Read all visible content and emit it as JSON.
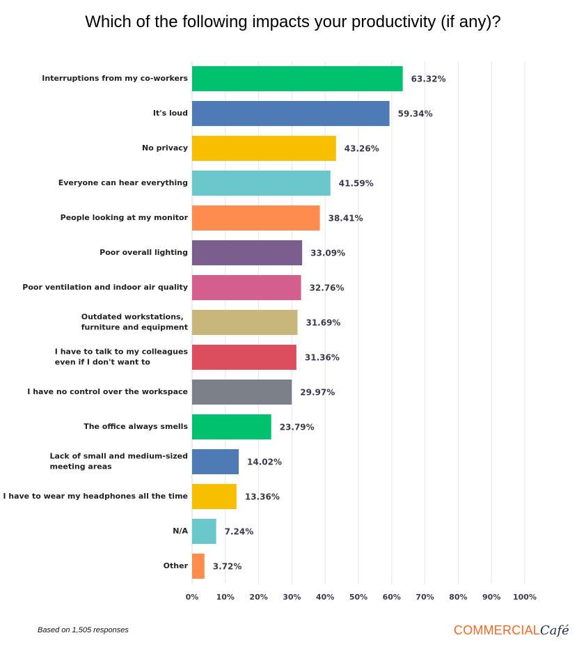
{
  "chart_data": {
    "type": "bar",
    "orientation": "horizontal",
    "title": "Which of the following impacts your productivity (if any)?",
    "categories": [
      "Interruptions from my co-workers",
      "It's loud",
      "No privacy",
      "Everyone can hear everything",
      "People looking at my monitor",
      "Poor overall lighting",
      "Poor ventilation and indoor air quality",
      "Outdated workstations, furniture and equipment",
      "I have to talk to my colleagues even if I don't want to",
      "I have no control over the workspace",
      "The office always smells",
      "Lack of small and medium-sized meeting areas",
      "I have to wear my headphones all the time",
      "N/A",
      "Other"
    ],
    "label_lines": [
      [
        "Interruptions from my co-workers"
      ],
      [
        "It's loud"
      ],
      [
        "No privacy"
      ],
      [
        "Everyone can hear everything"
      ],
      [
        "People looking at my monitor"
      ],
      [
        "Poor overall lighting"
      ],
      [
        "Poor ventilation and indoor air quality"
      ],
      [
        "Outdated workstations,",
        "furniture and equipment"
      ],
      [
        "I have to talk to my colleagues",
        "even if I don't want to"
      ],
      [
        "I have no control over the workspace"
      ],
      [
        "The office always smells"
      ],
      [
        "Lack of small and medium-sized",
        "meeting areas"
      ],
      [
        "I have to wear my headphones all the time"
      ],
      [
        "N/A"
      ],
      [
        "Other"
      ]
    ],
    "values": [
      63.32,
      59.34,
      43.26,
      41.59,
      38.41,
      33.09,
      32.76,
      31.69,
      31.36,
      29.97,
      23.79,
      14.02,
      13.36,
      7.24,
      3.72
    ],
    "value_labels": [
      "63.32%",
      "59.34%",
      "43.26%",
      "41.59%",
      "38.41%",
      "33.09%",
      "32.76%",
      "31.69%",
      "31.36%",
      "29.97%",
      "23.79%",
      "14.02%",
      "13.36%",
      "7.24%",
      "3.72%"
    ],
    "colors": [
      "#00c16e",
      "#4e7ab5",
      "#f8bf00",
      "#6ac8cc",
      "#ff8c4f",
      "#7b5e8e",
      "#d45f8e",
      "#c8b77a",
      "#dc4e5e",
      "#7b8089",
      "#00c16e",
      "#4e7ab5",
      "#f8bf00",
      "#6ac8cc",
      "#ff8c4f"
    ],
    "xlim": [
      0,
      100
    ],
    "ticks": [
      0,
      10,
      20,
      30,
      40,
      50,
      60,
      70,
      80,
      90,
      100
    ],
    "tick_labels": [
      "0%",
      "10%",
      "20%",
      "30%",
      "40%",
      "50%",
      "60%",
      "70%",
      "80%",
      "90%",
      "100%"
    ],
    "grid": true
  },
  "footnote": "Based on 1,505 responses",
  "brand": {
    "main": "COMMERCIAL",
    "script": "Café",
    "main_color": "#ef6a2a",
    "script_color": "#1f2d4d"
  }
}
